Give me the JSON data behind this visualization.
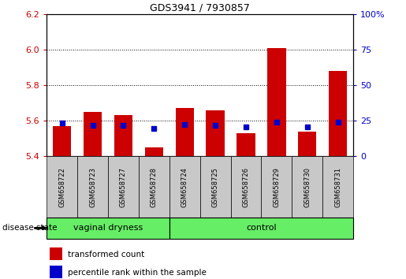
{
  "title": "GDS3941 / 7930857",
  "samples": [
    "GSM658722",
    "GSM658723",
    "GSM658727",
    "GSM658728",
    "GSM658724",
    "GSM658725",
    "GSM658726",
    "GSM658729",
    "GSM658730",
    "GSM658731"
  ],
  "red_values": [
    5.57,
    5.65,
    5.63,
    5.45,
    5.67,
    5.66,
    5.53,
    6.01,
    5.54,
    5.88
  ],
  "blue_values": [
    5.585,
    5.575,
    5.575,
    5.555,
    5.58,
    5.575,
    5.565,
    5.59,
    5.565,
    5.59
  ],
  "ylim": [
    5.4,
    6.2
  ],
  "yticks_left": [
    5.4,
    5.6,
    5.8,
    6.0,
    6.2
  ],
  "yticks_right": [
    0,
    25,
    50,
    75,
    100
  ],
  "grid_values": [
    5.6,
    5.8,
    6.0
  ],
  "bar_bottom": 5.4,
  "bar_width": 0.6,
  "blue_marker_size": 5,
  "group_labels": [
    "vaginal dryness",
    "control"
  ],
  "bar_color": "#CC0000",
  "blue_color": "#0000CC",
  "tick_label_color_left": "#CC0000",
  "tick_label_color_right": "#0000CC",
  "legend_red": "transformed count",
  "legend_blue": "percentile rank within the sample",
  "disease_state_label": "disease state",
  "sample_bg_color": "#C8C8C8",
  "green_color": "#66EE66",
  "plot_bg_color": "#FFFFFF",
  "fig_width": 5.15,
  "fig_height": 3.54
}
